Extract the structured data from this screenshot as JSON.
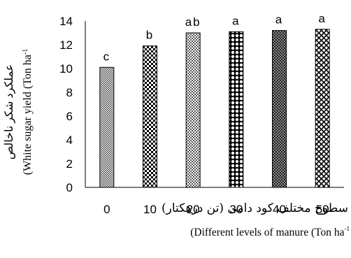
{
  "chart_data": {
    "type": "bar",
    "categories": [
      "0",
      "10",
      "20",
      "30",
      "40",
      "50"
    ],
    "values": [
      10.1,
      11.9,
      13.0,
      13.1,
      13.2,
      13.3
    ],
    "significance_letters": [
      "c",
      "b",
      "ab",
      "a",
      "a",
      "a"
    ],
    "ylim": [
      0,
      14
    ],
    "yticks": [
      "0",
      "2",
      "4",
      "6",
      "8",
      "10",
      "12",
      "14"
    ],
    "ylabel_fa": "عملکرد شکر ناخالص",
    "ylabel_en": "(White sugar yield (Ton ha",
    "ylabel_en_sup": "-1",
    "xlabel_fa": "سطوح مختلف کود دامی (تن درهکتار)",
    "xlabel_en": "(Different levels of manure (Ton ha",
    "xlabel_en_sup": "-1",
    "grid": false,
    "legend": "none",
    "bar_patterns": [
      "fine-dots",
      "checker",
      "fine-checker",
      "diamond-dots",
      "dense-checker",
      "diamond-grid"
    ]
  }
}
